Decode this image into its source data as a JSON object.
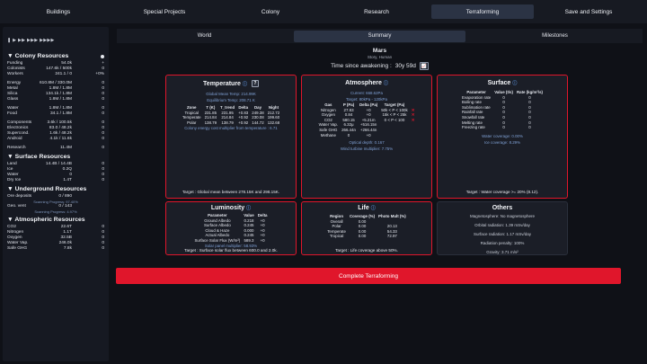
{
  "nav": [
    "Buildings",
    "Special Projects",
    "Colony",
    "Research",
    "Terraforming",
    "Save and Settings"
  ],
  "controls": "❚ ▶ ▶▶ ▶▶▶ ▶▶▶▶",
  "colony": {
    "title": "▼ Colony Resources",
    "rows": [
      {
        "n": "Funding",
        "v": "54.0k",
        "r": "+"
      },
      {
        "n": "Colonists",
        "v": "147.6k / 500k",
        "r": "0"
      },
      {
        "n": "Workers",
        "v": "241.1 / 0",
        "r": "+0%"
      },
      {
        "gap": true
      },
      {
        "n": "Energy",
        "v": "610.8M / 330.0M",
        "r": "0"
      },
      {
        "n": "Metal",
        "v": "1.8M / 1.8M",
        "r": "0"
      },
      {
        "n": "Silica",
        "v": "134.1k / 1.8M",
        "r": "0"
      },
      {
        "n": "Glass",
        "v": "1.8M / 1.8M",
        "r": "0"
      },
      {
        "gap": true
      },
      {
        "n": "Water",
        "v": "1.8M / 1.8M",
        "r": "0"
      },
      {
        "n": "Food",
        "v": "34.1 / 1.8M",
        "r": "0"
      },
      {
        "gap": true
      },
      {
        "n": "Components",
        "v": "3.6k / 100.5k",
        "r": "0"
      },
      {
        "n": "Electronics",
        "v": "83.0 / 48.2k",
        "r": "0"
      },
      {
        "n": "Supercond.",
        "v": "1.6k / 48.2k",
        "r": "0"
      },
      {
        "n": "Android",
        "v": "4.1k / 11.6k",
        "r": "0"
      },
      {
        "gap": true
      },
      {
        "n": "Research",
        "v": "11.4M",
        "r": "0"
      }
    ]
  },
  "surface_res": {
    "title": "▼ Surface Resources",
    "rows": [
      {
        "n": "Land",
        "v": "14.4B / 14.4B",
        "r": "0"
      },
      {
        "n": "Ice",
        "v": "0.2Q",
        "r": "0"
      },
      {
        "n": "Water",
        "v": "0",
        "r": "0"
      },
      {
        "n": "Dry Ice",
        "v": "1.4T",
        "r": "0"
      }
    ]
  },
  "underground": {
    "title": "▼ Underground Resources",
    "rows": [
      {
        "n": "Ore deposits",
        "v": "0 / 890",
        "r": ""
      },
      {
        "scan": "Scanning Progress: 97.40%"
      },
      {
        "n": "Geo. vent",
        "v": "0 / 143",
        "r": ""
      },
      {
        "scan": "Scanning Progress: 4.97%"
      }
    ]
  },
  "atmo_res": {
    "title": "▼ Atmospheric Resources",
    "rows": [
      {
        "n": "CO2",
        "v": "22.6T",
        "r": "0"
      },
      {
        "n": "Nitrogen",
        "v": "1.1T",
        "r": "0"
      },
      {
        "n": "Oxygen",
        "v": "32.5B",
        "r": "0"
      },
      {
        "n": "Water Vap.",
        "v": "246.0k",
        "r": "0"
      },
      {
        "n": "Safe GHG",
        "v": "7.8k",
        "r": "0"
      }
    ]
  },
  "subtabs": [
    "World",
    "Summary",
    "Milestones"
  ],
  "planet": {
    "name": "Mars",
    "sub": "Story, Human"
  },
  "awaken": {
    "label": "Time since awakening :",
    "value": "30y 59d",
    "btn": "📈"
  },
  "temperature": {
    "title": "Temperature",
    "q": "?",
    "mean": "Global Mean Temp: 214.99K",
    "eq": "Equilibrium Temp: 208.71 K",
    "headers": [
      "Zone",
      "T (K)",
      "T_trend",
      "Delta",
      "Day",
      "Night"
    ],
    "rows": [
      [
        "Tropical",
        "231.85",
        "231.95",
        "+0.83",
        "249.38",
        "212.72"
      ],
      [
        "Temperate",
        "214.84",
        "214.84",
        "+0.92",
        "230.08",
        "199.60"
      ],
      [
        "Polar",
        "138.79",
        "138.79",
        "+0.92",
        "144.72",
        "132.68"
      ]
    ],
    "note": "Colony energy cost multiplier from temperature : 6.71",
    "target": "Target : Global mean between 278.15K and 298.15K."
  },
  "atmosphere": {
    "title": "Atmosphere",
    "current": "Current: 668.62Pa",
    "target_line": "Target: 80kPa - 120kPa",
    "headers": [
      "Gas",
      "P (Pa)",
      "Delta (Pa)",
      "Target (Pa)",
      ""
    ],
    "rows": [
      [
        "Nitrogen",
        "27.83",
        "+0",
        "50k < P < 100k",
        "✕"
      ],
      [
        "Oxygen",
        "0.84",
        "+0",
        "15k < P < 25k",
        "✕"
      ],
      [
        "CO2",
        "580.15",
        "+5.21m",
        "0 < P < 100",
        "✕"
      ],
      [
        "Water Vap.",
        "6.32μ",
        "+516.15n",
        "",
        ""
      ],
      [
        "Safe GHG",
        "266.44n",
        "+266.44n",
        "",
        ""
      ],
      [
        "Methane",
        "0",
        "+0",
        "",
        ""
      ]
    ],
    "optical": "Optical depth: 0.167",
    "wind": "Wind turbine multiplier: 7.75%"
  },
  "surface": {
    "title": "Surface",
    "headers": [
      "Parameter",
      "Value (t/s)",
      "Rate (kg/m²/s)"
    ],
    "rows": [
      [
        "Evaporation rate",
        "0",
        "0"
      ],
      [
        "Boiling rate",
        "0",
        "0"
      ],
      [
        "Sublimation rate",
        "0",
        "0"
      ],
      [
        "Rainfall rate",
        "0",
        "0"
      ],
      [
        "Snowfall rate",
        "0",
        "0"
      ],
      [
        "Melting rate",
        "0",
        "0"
      ],
      [
        "Freezing rate",
        "0",
        "0"
      ]
    ],
    "water": "Water coverage: 0.00%",
    "ice": "Ice coverage: 8.29%",
    "target": "Target : Water coverage >= 20% (8.12)."
  },
  "luminosity": {
    "title": "Luminosity",
    "headers": [
      "Parameter",
      "Value",
      "Delta"
    ],
    "rows": [
      [
        "Ground Albedo",
        "0.218",
        "+0"
      ],
      [
        "Surface Albedo",
        "0.245",
        "+0"
      ],
      [
        "Cloud & Haze",
        "0.000",
        "+0"
      ],
      [
        "Actual Albedo",
        "0.245",
        "+0"
      ],
      [
        "Surface Solar Flux (W/m²)",
        "589.3",
        "+0"
      ]
    ],
    "note": "Solar panel multiplier: 58.93%",
    "target": "Target : Surface solar flux between 600.0 and 2.0k."
  },
  "life": {
    "title": "Life",
    "headers": [
      "Region",
      "Coverage (%)",
      "Photo Mult (%)"
    ],
    "rows": [
      [
        "Overall",
        "0.00",
        ""
      ],
      [
        "Polar",
        "0.00",
        "20.13"
      ],
      [
        "Temperate",
        "0.00",
        "54.33"
      ],
      [
        "Tropical",
        "0.00",
        "72.97"
      ]
    ],
    "target": "Target : Life coverage above 50%."
  },
  "others": {
    "title": "Others",
    "lines": [
      "Magnetosphere: No magnetosphere",
      "Orbital radiation: 1.39 mSv/day",
      "Surface radiation: 1.17 mSv/day",
      "Radiation penalty: 100%",
      "Gravity: 3.71 m/s²"
    ]
  },
  "complete": "Complete Terraforming",
  "colors": {
    "accent_red": "#e0162b",
    "bg": "#0f1117",
    "panel": "#1b1e27",
    "info_blue": "#5a8fd8"
  }
}
